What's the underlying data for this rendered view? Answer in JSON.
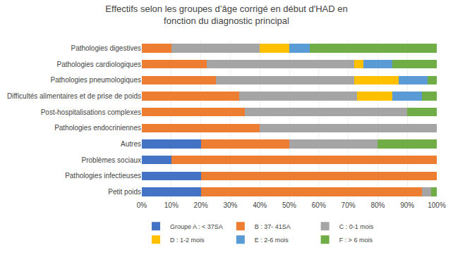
{
  "chart_data": {
    "type": "bar",
    "orientation": "horizontal",
    "stacked": true,
    "title": "Effectifs selon les groupes d’âge corrigé en début d'HAD en\nfonction du diagnostic principal",
    "categories": [
      "Pathologies digestives",
      "Pathologies cardiologiques",
      "Pathologies pneumologiques",
      "Difficultés alimentaires et de prise de poids",
      "Post-hospitalisations complexes",
      "Pathologies endocriniennes",
      "Autres",
      "Problèmes sociaux",
      "Pathologies infectieuses",
      "Petit poids"
    ],
    "series": [
      {
        "name": "Groupe A : < 37SA",
        "color": "#4472c4",
        "values": [
          0,
          0,
          0,
          0,
          0,
          0,
          20,
          10,
          20,
          20
        ]
      },
      {
        "name": "B : 37- 41SA",
        "color": "#ed7d31",
        "values": [
          10,
          22,
          25,
          33,
          35,
          40,
          30,
          90,
          80,
          75
        ]
      },
      {
        "name": "C : 0-1 mois",
        "color": "#a5a5a5",
        "values": [
          30,
          50,
          47,
          40,
          55,
          60,
          30,
          0,
          0,
          3
        ]
      },
      {
        "name": "D : 1-2 mois",
        "color": "#ffc000",
        "values": [
          10,
          3,
          15,
          12,
          0,
          0,
          0,
          0,
          0,
          0
        ]
      },
      {
        "name": "E : 2-6 mois",
        "color": "#5b9bd5",
        "values": [
          7,
          10,
          10,
          10,
          0,
          0,
          0,
          0,
          0,
          0
        ]
      },
      {
        "name": "F : > 6 mois",
        "color": "#70ad47",
        "values": [
          43,
          15,
          3,
          5,
          10,
          0,
          20,
          0,
          0,
          2
        ]
      }
    ],
    "xlim": [
      0,
      100
    ],
    "xticks": [
      {
        "value": 0,
        "label": "0%"
      },
      {
        "value": 10,
        "label": "10%"
      },
      {
        "value": 20,
        "label": "20%"
      },
      {
        "value": 30,
        "label": "30%"
      },
      {
        "value": 40,
        "label": "40%"
      },
      {
        "value": 50,
        "label": "50%"
      },
      {
        "value": 60,
        "label": "60%"
      },
      {
        "value": 70,
        "label": "70%"
      },
      {
        "value": 80,
        "label": "80%"
      },
      {
        "value": 90,
        "label": "90%"
      },
      {
        "value": 100,
        "label": "100%"
      }
    ],
    "grid": true,
    "legend": "bottom"
  }
}
